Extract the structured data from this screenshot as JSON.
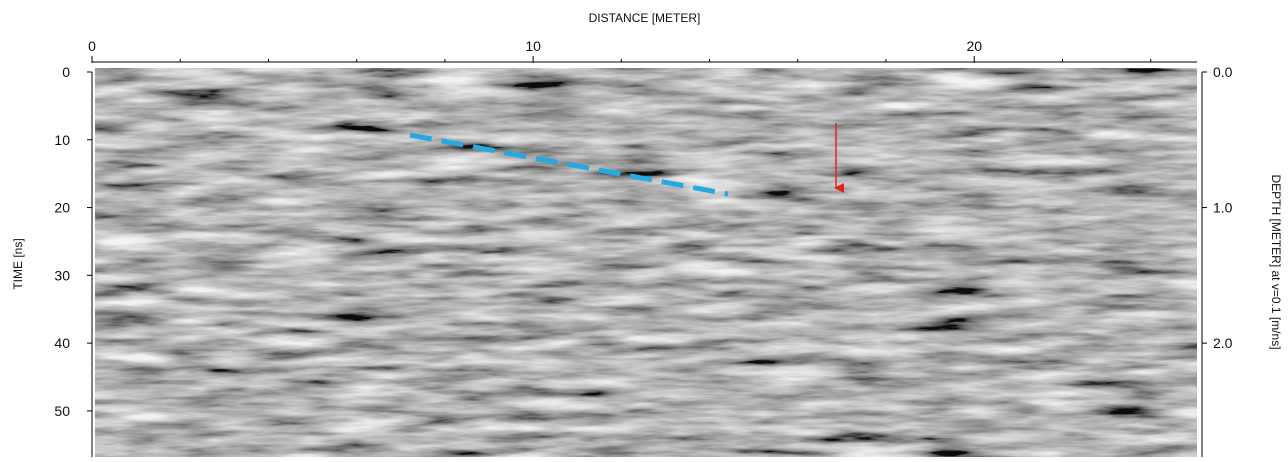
{
  "chart_data": {
    "type": "radargram",
    "xlabel": "DISTANCE [METER]",
    "ylabel": "TIME [ns]",
    "y2label": "DEPTH [METER] at v=0.1 [m/ns]",
    "xlim": [
      0,
      25.05
    ],
    "xticks": [
      0,
      10,
      20
    ],
    "xminorticks": [
      2,
      4,
      6,
      8,
      12,
      14,
      16,
      18,
      22,
      24
    ],
    "ylim": [
      0,
      56.8
    ],
    "yticks": [
      0,
      10,
      20,
      30,
      40,
      50
    ],
    "y2lim": [
      0,
      2.84
    ],
    "y2ticks": [
      {
        "value": 0,
        "label": "0.0"
      },
      {
        "value": 1,
        "label": "1.0"
      },
      {
        "value": 2,
        "label": "2.0"
      }
    ]
  }
}
